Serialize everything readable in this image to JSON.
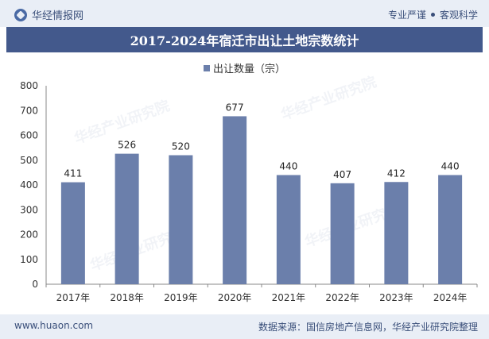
{
  "header": {
    "brand": "华经情报网",
    "slogan_left": "专业严谨",
    "slogan_right": "客观科学"
  },
  "footer": {
    "website": "www.huaon.com",
    "source": "数据来源：国信房地产信息网，华经产业研究院整理"
  },
  "colors": {
    "bar": "#6b7fab",
    "title_bg": "#43598c"
  },
  "chart_data": {
    "type": "bar",
    "title": "2017-2024年宿迁市出让土地宗数统计",
    "legend": "出让数量（宗）",
    "categories": [
      "2017年",
      "2018年",
      "2019年",
      "2020年",
      "2021年",
      "2022年",
      "2023年",
      "2024年"
    ],
    "values": [
      411,
      526,
      520,
      677,
      440,
      407,
      412,
      440
    ],
    "ylim": [
      0,
      800
    ],
    "yticks": [
      0,
      100,
      200,
      300,
      400,
      500,
      600,
      700,
      800
    ],
    "xlabel": "",
    "ylabel": ""
  }
}
